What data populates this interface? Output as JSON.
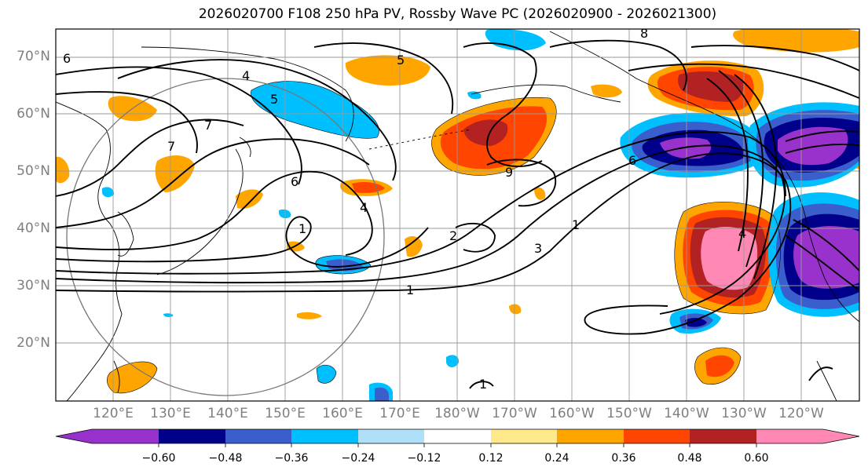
{
  "title": "2026020700 F108 250 hPa PV, Rossby Wave PC (2026020900 - 2026021300)",
  "map": {
    "lat_labels": [
      "70°N",
      "60°N",
      "50°N",
      "40°N",
      "30°N",
      "20°N"
    ],
    "lon_labels": [
      "120°E",
      "130°E",
      "140°E",
      "150°E",
      "160°E",
      "170°E",
      "180°W",
      "170°W",
      "160°W",
      "150°W",
      "140°W",
      "130°W",
      "120°W"
    ],
    "contour_labels": [
      "8",
      "6",
      "4",
      "5",
      "7",
      "6",
      "1",
      "2",
      "3",
      "4",
      "1",
      "1",
      "9",
      "4",
      "6",
      "7",
      "1",
      "5"
    ]
  },
  "colorbar": {
    "labels": [
      "−0.60",
      "−0.48",
      "−0.36",
      "−0.24",
      "−0.12",
      "0.12",
      "0.24",
      "0.36",
      "0.48",
      "0.60"
    ],
    "colors": [
      "#9932cc",
      "#00008b",
      "#3a5fcd",
      "#00bfff",
      "#b0e0f8",
      "#ffffff",
      "#ffe98a",
      "#ffa500",
      "#ff4500",
      "#b22222",
      "#ff88b4"
    ]
  }
}
